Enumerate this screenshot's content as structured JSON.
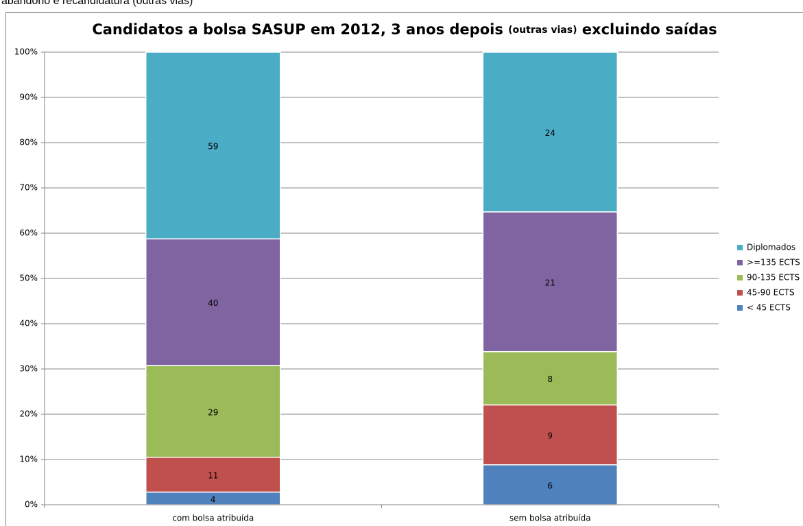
{
  "header": {
    "text": "abandono e recandidatura (outras vias)"
  },
  "chart_data": {
    "type": "bar",
    "stacking": "percent",
    "title": [
      "Candidatos a bolsa SASUP em 2012, 3 anos depois",
      "(outras vias)",
      "excluindo saídas"
    ],
    "categories": [
      "com bolsa atribuída",
      "sem bolsa atribuída"
    ],
    "series": [
      {
        "name": "< 45 ECTS",
        "color": "#4f81bd",
        "values": [
          4,
          6
        ]
      },
      {
        "name": "45-90 ECTS",
        "color": "#c0504d",
        "values": [
          11,
          9
        ]
      },
      {
        "name": "90-135 ECTS",
        "color": "#9bbb59",
        "values": [
          29,
          8
        ]
      },
      {
        "name": ">=135 ECTS",
        "color": "#8064a2",
        "values": [
          40,
          21
        ]
      },
      {
        "name": "Diplomados",
        "color": "#4bacc6",
        "values": [
          59,
          24
        ]
      }
    ],
    "ylim": [
      0,
      100
    ],
    "yticks": [
      {
        "value": 0,
        "label": "0%"
      },
      {
        "value": 10,
        "label": "10%"
      },
      {
        "value": 20,
        "label": "20%"
      },
      {
        "value": 30,
        "label": "30%"
      },
      {
        "value": 40,
        "label": "40%"
      },
      {
        "value": 50,
        "label": "50%"
      },
      {
        "value": 60,
        "label": "60%"
      },
      {
        "value": 70,
        "label": "70%"
      },
      {
        "value": 80,
        "label": "80%"
      },
      {
        "value": 90,
        "label": "90%"
      },
      {
        "value": 100,
        "label": "100%"
      }
    ],
    "grid": true,
    "legend": "right"
  }
}
